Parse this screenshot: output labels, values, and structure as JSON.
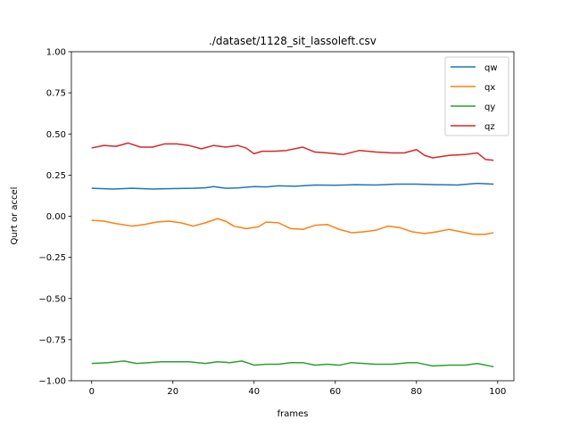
{
  "chart_data": {
    "type": "line",
    "title": "./dataset/1128_sit_lassoleft.csv",
    "xlabel": "frames",
    "ylabel": "Qurt or accel",
    "xlim": [
      -5,
      104
    ],
    "ylim": [
      -1.0,
      1.0
    ],
    "xticks": [
      0,
      20,
      40,
      60,
      80,
      100
    ],
    "yticks": [
      -1.0,
      -0.75,
      -0.5,
      -0.25,
      0.0,
      0.25,
      0.5,
      0.75,
      1.0
    ],
    "xtick_labels": [
      "0",
      "20",
      "40",
      "60",
      "80",
      "100"
    ],
    "ytick_labels": [
      "−1.00",
      "−0.75",
      "−0.50",
      "−0.25",
      "0.00",
      "0.25",
      "0.50",
      "0.75",
      "1.00"
    ],
    "grid": false,
    "legend": "top-right",
    "series": [
      {
        "name": "qw",
        "color": "#1f77b4",
        "x": [
          0,
          5,
          10,
          15,
          20,
          25,
          28,
          30,
          33,
          36,
          40,
          43,
          46,
          50,
          55,
          60,
          65,
          70,
          75,
          80,
          85,
          90,
          95,
          99
        ],
        "values": [
          0.17,
          0.165,
          0.17,
          0.165,
          0.168,
          0.17,
          0.173,
          0.18,
          0.17,
          0.172,
          0.18,
          0.178,
          0.185,
          0.182,
          0.19,
          0.188,
          0.192,
          0.19,
          0.195,
          0.195,
          0.192,
          0.19,
          0.2,
          0.195
        ]
      },
      {
        "name": "qx",
        "color": "#ff7f0e",
        "x": [
          0,
          3,
          6,
          10,
          13,
          16,
          19,
          22,
          25,
          28,
          31,
          33,
          35,
          38,
          41,
          43,
          46,
          49,
          52,
          55,
          58,
          61,
          64,
          67,
          70,
          73,
          76,
          79,
          82,
          85,
          88,
          91,
          94,
          97,
          99
        ],
        "values": [
          -0.025,
          -0.03,
          -0.045,
          -0.06,
          -0.05,
          -0.035,
          -0.03,
          -0.04,
          -0.06,
          -0.04,
          -0.015,
          -0.03,
          -0.06,
          -0.075,
          -0.065,
          -0.035,
          -0.04,
          -0.075,
          -0.08,
          -0.055,
          -0.05,
          -0.08,
          -0.1,
          -0.095,
          -0.085,
          -0.06,
          -0.07,
          -0.095,
          -0.105,
          -0.095,
          -0.08,
          -0.095,
          -0.11,
          -0.11,
          -0.1
        ]
      },
      {
        "name": "qy",
        "color": "#2ca02c",
        "x": [
          0,
          4,
          8,
          11,
          14,
          17,
          20,
          24,
          28,
          31,
          34,
          37,
          40,
          43,
          46,
          49,
          52,
          55,
          58,
          61,
          64,
          67,
          70,
          74,
          78,
          80,
          82,
          84,
          88,
          92,
          95,
          99
        ],
        "values": [
          -0.895,
          -0.89,
          -0.88,
          -0.895,
          -0.89,
          -0.885,
          -0.885,
          -0.885,
          -0.895,
          -0.885,
          -0.89,
          -0.88,
          -0.905,
          -0.9,
          -0.9,
          -0.89,
          -0.89,
          -0.905,
          -0.9,
          -0.905,
          -0.89,
          -0.895,
          -0.9,
          -0.9,
          -0.89,
          -0.89,
          -0.9,
          -0.91,
          -0.905,
          -0.905,
          -0.895,
          -0.915
        ]
      },
      {
        "name": "qz",
        "color": "#d62728",
        "x": [
          0,
          3,
          6,
          9,
          12,
          15,
          18,
          21,
          24,
          27,
          30,
          33,
          36,
          38,
          40,
          42,
          45,
          48,
          52,
          55,
          58,
          62,
          66,
          70,
          74,
          77,
          80,
          82,
          84,
          88,
          92,
          95,
          97,
          99
        ],
        "values": [
          0.415,
          0.43,
          0.425,
          0.445,
          0.42,
          0.42,
          0.44,
          0.44,
          0.43,
          0.41,
          0.43,
          0.42,
          0.43,
          0.415,
          0.38,
          0.395,
          0.395,
          0.4,
          0.42,
          0.39,
          0.385,
          0.375,
          0.4,
          0.39,
          0.385,
          0.385,
          0.405,
          0.37,
          0.355,
          0.37,
          0.375,
          0.385,
          0.345,
          0.34
        ]
      }
    ]
  }
}
